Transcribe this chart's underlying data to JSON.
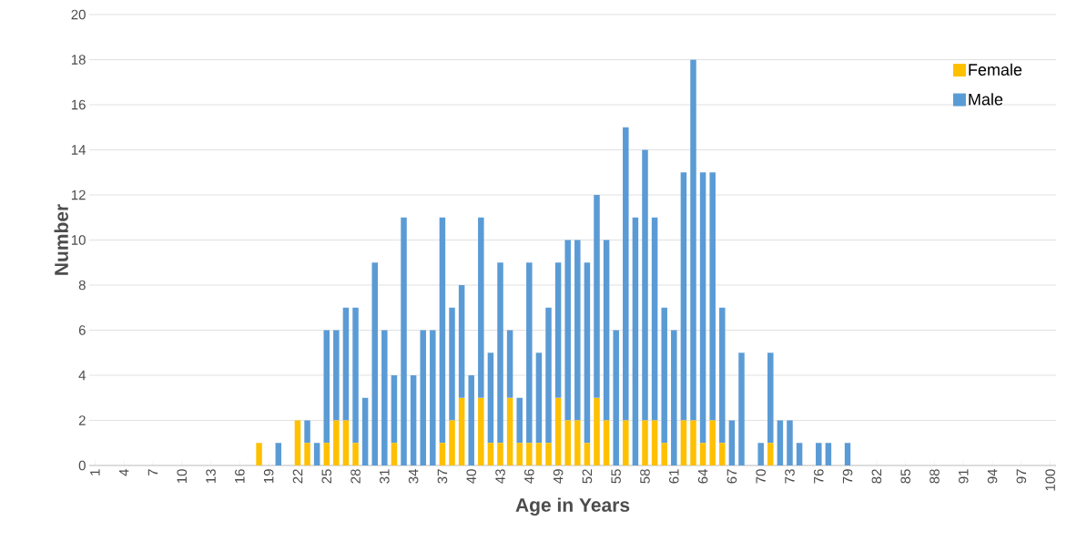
{
  "chart_data": {
    "type": "bar",
    "stacked": true,
    "xlabel": "Age in Years",
    "ylabel": "Number",
    "categories": [
      "1",
      null,
      null,
      "4",
      null,
      null,
      "7",
      null,
      null,
      "10",
      null,
      null,
      "13",
      null,
      null,
      "16",
      null,
      null,
      "19",
      null,
      null,
      "22",
      null,
      null,
      "25",
      null,
      null,
      "28",
      null,
      null,
      "31",
      null,
      null,
      "34",
      null,
      null,
      "37",
      null,
      null,
      "40",
      null,
      null,
      "43",
      null,
      null,
      "46",
      null,
      null,
      "49",
      null,
      null,
      "52",
      null,
      null,
      "55",
      null,
      null,
      "58",
      null,
      null,
      "61",
      null,
      null,
      "64",
      null,
      null,
      "67",
      null,
      null,
      "70",
      null,
      null,
      "73",
      null,
      null,
      "76",
      null,
      null,
      "79",
      null,
      null,
      "82",
      null,
      null,
      "85",
      null,
      null,
      "88",
      null,
      null,
      "91",
      null,
      null,
      "94",
      null,
      null,
      "97",
      null,
      null,
      "100"
    ],
    "series": [
      {
        "name": "Female",
        "color": "#ffc000",
        "values": [
          0,
          0,
          0,
          0,
          0,
          0,
          0,
          0,
          0,
          0,
          0,
          0,
          0,
          0,
          0,
          0,
          0,
          1,
          0,
          0,
          0,
          2,
          1,
          0,
          1,
          2,
          2,
          1,
          0,
          0,
          0,
          1,
          0,
          0,
          0,
          0,
          1,
          2,
          3,
          0,
          3,
          1,
          1,
          3,
          1,
          1,
          1,
          1,
          3,
          2,
          2,
          1,
          3,
          2,
          0,
          2,
          0,
          2,
          2,
          1,
          0,
          2,
          2,
          1,
          2,
          1,
          0,
          0,
          0,
          0,
          1,
          0,
          0,
          0,
          0,
          0,
          0,
          0,
          0,
          0,
          0,
          0,
          0,
          0,
          0,
          0,
          0,
          0,
          0,
          0,
          0,
          0,
          0,
          0,
          0,
          0,
          0,
          0,
          0,
          0
        ]
      },
      {
        "name": "Male",
        "color": "#5b9bd5",
        "values": [
          0,
          0,
          0,
          0,
          0,
          0,
          0,
          0,
          0,
          0,
          0,
          0,
          0,
          0,
          0,
          0,
          0,
          0,
          0,
          1,
          0,
          0,
          1,
          1,
          5,
          4,
          5,
          6,
          3,
          9,
          6,
          3,
          11,
          4,
          6,
          6,
          10,
          5,
          5,
          4,
          8,
          4,
          8,
          3,
          2,
          8,
          4,
          6,
          6,
          8,
          8,
          8,
          9,
          8,
          6,
          13,
          11,
          12,
          9,
          6,
          6,
          11,
          16,
          12,
          11,
          6,
          2,
          5,
          0,
          1,
          4,
          2,
          2,
          1,
          0,
          1,
          1,
          0,
          1,
          0,
          0,
          0,
          0,
          0,
          0,
          0,
          0,
          0,
          0,
          0,
          0,
          0,
          0,
          0,
          0,
          0,
          0,
          0,
          0,
          0
        ]
      }
    ],
    "ylim": [
      0,
      20
    ],
    "yticks": [
      0,
      2,
      4,
      6,
      8,
      10,
      12,
      14,
      16,
      18,
      20
    ],
    "grid": "y",
    "legend": "top right"
  }
}
